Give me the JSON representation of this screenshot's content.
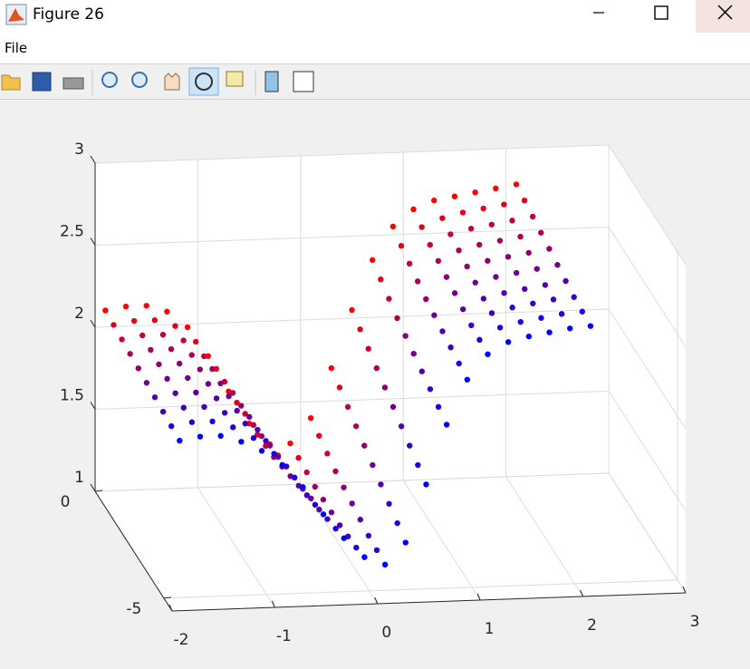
{
  "window": {
    "title": "Figure 26",
    "menu": [
      "File"
    ]
  },
  "chart_data": {
    "type": "scatter3d",
    "x": [
      -1.9,
      -1.7,
      -1.5,
      -1.3,
      -1.1,
      -0.9,
      -0.7,
      -0.5,
      -0.3,
      -0.1,
      0.1,
      0.3,
      0.5,
      0.7,
      0.9,
      1.1,
      1.3,
      1.5,
      1.7,
      1.9,
      2.1
    ],
    "series": [
      {
        "y": 0,
        "color": "#ff0000",
        "values": [
          2.1,
          2.12,
          2.12,
          2.08,
          1.98,
          1.8,
          1.58,
          1.38,
          1.25,
          1.25,
          1.4,
          1.7,
          2.05,
          2.35,
          2.55,
          2.65,
          2.7,
          2.72,
          2.74,
          2.76,
          2.78
        ]
      },
      {
        "y": -0.6,
        "color": "#e3001c",
        "values": [
          2.09,
          2.11,
          2.11,
          2.07,
          1.97,
          1.8,
          1.59,
          1.39,
          1.26,
          1.24,
          1.37,
          1.66,
          2.01,
          2.31,
          2.51,
          2.62,
          2.67,
          2.7,
          2.72,
          2.74,
          2.76
        ]
      },
      {
        "y": -1.2,
        "color": "#c60039",
        "values": [
          2.08,
          2.1,
          2.1,
          2.06,
          1.96,
          1.8,
          1.6,
          1.4,
          1.27,
          1.23,
          1.34,
          1.62,
          1.97,
          2.27,
          2.48,
          2.59,
          2.65,
          2.68,
          2.7,
          2.72,
          2.74
        ]
      },
      {
        "y": -1.8,
        "color": "#aa0055",
        "values": [
          2.07,
          2.09,
          2.09,
          2.05,
          1.96,
          1.81,
          1.61,
          1.41,
          1.28,
          1.22,
          1.31,
          1.58,
          1.93,
          2.23,
          2.45,
          2.57,
          2.63,
          2.66,
          2.68,
          2.7,
          2.72
        ]
      },
      {
        "y": -2.4,
        "color": "#8e0071",
        "values": [
          2.06,
          2.08,
          2.08,
          2.04,
          1.95,
          1.81,
          1.62,
          1.43,
          1.29,
          1.22,
          1.29,
          1.54,
          1.89,
          2.2,
          2.42,
          2.55,
          2.61,
          2.64,
          2.66,
          2.68,
          2.7
        ]
      },
      {
        "y": -3.0,
        "color": "#71008e",
        "values": [
          2.05,
          2.07,
          2.07,
          2.03,
          1.95,
          1.82,
          1.64,
          1.45,
          1.31,
          1.22,
          1.27,
          1.5,
          1.85,
          2.17,
          2.4,
          2.53,
          2.59,
          2.62,
          2.64,
          2.66,
          2.68
        ]
      },
      {
        "y": -3.6,
        "color": "#5500aa",
        "values": [
          2.04,
          2.06,
          2.06,
          2.02,
          1.94,
          1.82,
          1.65,
          1.47,
          1.32,
          1.22,
          1.25,
          1.46,
          1.81,
          2.14,
          2.38,
          2.51,
          2.57,
          2.6,
          2.62,
          2.64,
          2.66
        ]
      },
      {
        "y": -4.2,
        "color": "#3900c6",
        "values": [
          2.03,
          2.05,
          2.05,
          2.01,
          1.94,
          1.83,
          1.67,
          1.49,
          1.34,
          1.23,
          1.23,
          1.42,
          1.77,
          2.11,
          2.36,
          2.49,
          2.56,
          2.59,
          2.61,
          2.63,
          2.64
        ]
      },
      {
        "y": -4.8,
        "color": "#1c00e3",
        "values": [
          2.02,
          2.04,
          2.04,
          2.0,
          1.93,
          1.83,
          1.68,
          1.51,
          1.36,
          1.24,
          1.22,
          1.38,
          1.73,
          2.08,
          2.34,
          2.48,
          2.55,
          2.58,
          2.6,
          2.62,
          2.63
        ]
      },
      {
        "y": -5.4,
        "color": "#0000ff",
        "values": [
          2.01,
          2.03,
          2.03,
          1.99,
          1.93,
          1.84,
          1.7,
          1.53,
          1.38,
          1.26,
          1.21,
          1.34,
          1.69,
          2.05,
          2.32,
          2.47,
          2.54,
          2.57,
          2.59,
          2.61,
          2.62
        ]
      }
    ],
    "xlim": [
      -2,
      3
    ],
    "ylim": [
      -5.6,
      0
    ],
    "zlim": [
      1,
      3
    ],
    "xticks": [
      -2,
      -1,
      0,
      1,
      2,
      3
    ],
    "yticks": [
      -5,
      0
    ],
    "zticks": [
      1,
      1.5,
      2,
      2.5,
      3
    ],
    "grid": true
  }
}
